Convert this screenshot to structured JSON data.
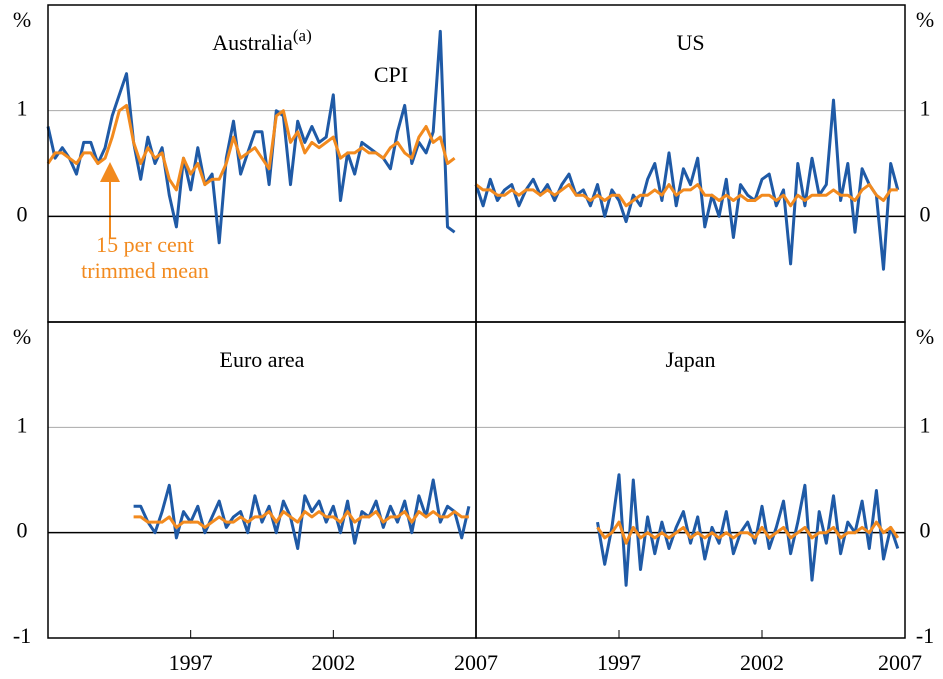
{
  "chart_data": [
    {
      "type": "line",
      "title": "Australia",
      "title_superscript": "(a)",
      "unit": "%",
      "x": [
        1992,
        1992.25,
        1992.5,
        1992.75,
        1993,
        1993.25,
        1993.5,
        1993.75,
        1994,
        1994.25,
        1994.5,
        1994.75,
        1995,
        1995.25,
        1995.5,
        1995.75,
        1996,
        1996.25,
        1996.5,
        1996.75,
        1997,
        1997.25,
        1997.5,
        1997.75,
        1998,
        1998.25,
        1998.5,
        1998.75,
        1999,
        1999.25,
        1999.5,
        1999.75,
        2000,
        2000.25,
        2000.5,
        2000.75,
        2001,
        2001.25,
        2001.5,
        2001.75,
        2002,
        2002.25,
        2002.5,
        2002.75,
        2003,
        2003.25,
        2003.5,
        2003.75,
        2004,
        2004.25,
        2004.5,
        2004.75,
        2005,
        2005.25,
        2005.5,
        2005.75,
        2006,
        2006.25
      ],
      "series": [
        {
          "name": "CPI",
          "color": "#1f5aa6",
          "values": [
            0.85,
            0.55,
            0.65,
            0.55,
            0.4,
            0.7,
            0.7,
            0.5,
            0.65,
            0.95,
            1.15,
            1.35,
            0.7,
            0.35,
            0.75,
            0.5,
            0.65,
            0.2,
            -0.1,
            0.55,
            0.25,
            0.65,
            0.3,
            0.4,
            -0.25,
            0.55,
            0.9,
            0.4,
            0.6,
            0.8,
            0.8,
            0.3,
            1.0,
            0.95,
            0.3,
            0.9,
            0.7,
            0.85,
            0.7,
            0.75,
            1.15,
            0.15,
            0.6,
            0.4,
            0.7,
            0.65,
            0.6,
            0.55,
            0.45,
            0.8,
            1.05,
            0.5,
            0.7,
            0.6,
            0.8,
            1.75,
            -0.1,
            -0.15
          ]
        },
        {
          "name": "15 per cent trimmed mean",
          "color": "#f28a1e",
          "values": [
            0.5,
            0.6,
            0.6,
            0.55,
            0.5,
            0.6,
            0.6,
            0.5,
            0.55,
            0.75,
            1.0,
            1.05,
            0.7,
            0.5,
            0.65,
            0.55,
            0.6,
            0.35,
            0.25,
            0.55,
            0.4,
            0.5,
            0.3,
            0.35,
            0.35,
            0.5,
            0.75,
            0.55,
            0.6,
            0.65,
            0.55,
            0.45,
            0.95,
            1.0,
            0.7,
            0.8,
            0.6,
            0.7,
            0.65,
            0.7,
            0.75,
            0.55,
            0.6,
            0.6,
            0.65,
            0.6,
            0.6,
            0.55,
            0.65,
            0.7,
            0.6,
            0.55,
            0.75,
            0.85,
            0.7,
            0.75,
            0.5,
            0.55
          ]
        }
      ],
      "xlim": [
        1992,
        2007
      ],
      "ylim": [
        -1,
        2
      ],
      "yticks": [
        0,
        1
      ]
    },
    {
      "type": "line",
      "title": "US",
      "unit": "%",
      "x": [
        1992,
        1992.25,
        1992.5,
        1992.75,
        1993,
        1993.25,
        1993.5,
        1993.75,
        1994,
        1994.25,
        1994.5,
        1994.75,
        1995,
        1995.25,
        1995.5,
        1995.75,
        1996,
        1996.25,
        1996.5,
        1996.75,
        1997,
        1997.25,
        1997.5,
        1997.75,
        1998,
        1998.25,
        1998.5,
        1998.75,
        1999,
        1999.25,
        1999.5,
        1999.75,
        2000,
        2000.25,
        2000.5,
        2000.75,
        2001,
        2001.25,
        2001.5,
        2001.75,
        2002,
        2002.25,
        2002.5,
        2002.75,
        2003,
        2003.25,
        2003.5,
        2003.75,
        2004,
        2004.25,
        2004.5,
        2004.75,
        2005,
        2005.25,
        2005.5,
        2005.75,
        2006,
        2006.25,
        2006.5,
        2006.75
      ],
      "series": [
        {
          "color": "#1f5aa6",
          "values": [
            0.3,
            0.1,
            0.35,
            0.15,
            0.25,
            0.3,
            0.1,
            0.25,
            0.35,
            0.2,
            0.3,
            0.15,
            0.3,
            0.4,
            0.2,
            0.25,
            0.1,
            0.3,
            0.0,
            0.25,
            0.15,
            -0.05,
            0.2,
            0.1,
            0.35,
            0.5,
            0.15,
            0.6,
            0.1,
            0.45,
            0.3,
            0.55,
            -0.1,
            0.2,
            0.0,
            0.35,
            -0.2,
            0.3,
            0.2,
            0.15,
            0.35,
            0.4,
            0.1,
            0.25,
            -0.45,
            0.5,
            0.1,
            0.55,
            0.2,
            0.3,
            1.1,
            0.15,
            0.5,
            -0.15,
            0.45,
            0.3,
            0.2,
            -0.5,
            0.5,
            0.25
          ]
        },
        {
          "color": "#f28a1e",
          "values": [
            0.3,
            0.25,
            0.25,
            0.2,
            0.2,
            0.25,
            0.2,
            0.25,
            0.25,
            0.2,
            0.25,
            0.2,
            0.25,
            0.3,
            0.2,
            0.2,
            0.15,
            0.2,
            0.15,
            0.2,
            0.2,
            0.1,
            0.15,
            0.2,
            0.2,
            0.25,
            0.2,
            0.3,
            0.2,
            0.25,
            0.25,
            0.3,
            0.2,
            0.2,
            0.15,
            0.2,
            0.15,
            0.2,
            0.15,
            0.15,
            0.2,
            0.2,
            0.15,
            0.2,
            0.1,
            0.2,
            0.15,
            0.2,
            0.2,
            0.2,
            0.25,
            0.2,
            0.2,
            0.15,
            0.25,
            0.3,
            0.2,
            0.15,
            0.25,
            0.25
          ]
        }
      ],
      "xlim": [
        1992,
        2007
      ],
      "ylim": [
        -1,
        2
      ],
      "yticks": [
        0,
        1
      ]
    },
    {
      "type": "line",
      "title": "Euro area",
      "unit": "%",
      "x": [
        1995,
        1995.25,
        1995.5,
        1995.75,
        1996,
        1996.25,
        1996.5,
        1996.75,
        1997,
        1997.25,
        1997.5,
        1997.75,
        1998,
        1998.25,
        1998.5,
        1998.75,
        1999,
        1999.25,
        1999.5,
        1999.75,
        2000,
        2000.25,
        2000.5,
        2000.75,
        2001,
        2001.25,
        2001.5,
        2001.75,
        2002,
        2002.25,
        2002.5,
        2002.75,
        2003,
        2003.25,
        2003.5,
        2003.75,
        2004,
        2004.25,
        2004.5,
        2004.75,
        2005,
        2005.25,
        2005.5,
        2005.75,
        2006,
        2006.25,
        2006.5,
        2006.75
      ],
      "series": [
        {
          "color": "#1f5aa6",
          "values": [
            0.25,
            0.25,
            0.1,
            0.0,
            0.2,
            0.45,
            -0.05,
            0.2,
            0.1,
            0.25,
            0.0,
            0.15,
            0.3,
            0.05,
            0.15,
            0.2,
            0.0,
            0.35,
            0.1,
            0.25,
            0.0,
            0.3,
            0.15,
            -0.15,
            0.35,
            0.2,
            0.3,
            0.1,
            0.25,
            0.0,
            0.3,
            -0.1,
            0.2,
            0.15,
            0.3,
            0.05,
            0.25,
            0.1,
            0.3,
            0.0,
            0.35,
            0.15,
            0.5,
            0.1,
            0.25,
            0.2,
            -0.05,
            0.25
          ]
        },
        {
          "color": "#f28a1e",
          "values": [
            0.15,
            0.15,
            0.1,
            0.1,
            0.1,
            0.15,
            0.05,
            0.1,
            0.1,
            0.1,
            0.05,
            0.1,
            0.15,
            0.1,
            0.1,
            0.15,
            0.1,
            0.15,
            0.15,
            0.2,
            0.1,
            0.2,
            0.15,
            0.1,
            0.2,
            0.15,
            0.2,
            0.15,
            0.15,
            0.1,
            0.2,
            0.1,
            0.15,
            0.15,
            0.2,
            0.1,
            0.15,
            0.15,
            0.2,
            0.1,
            0.2,
            0.15,
            0.2,
            0.15,
            0.15,
            0.2,
            0.15,
            0.15
          ]
        }
      ],
      "xlim": [
        1992,
        2007
      ],
      "ylim": [
        -1,
        2
      ],
      "yticks": [
        -1,
        0,
        1
      ],
      "xticks": [
        1997,
        2002,
        2007
      ]
    },
    {
      "type": "line",
      "title": "Japan",
      "unit": "%",
      "x": [
        1996.25,
        1996.5,
        1996.75,
        1997,
        1997.25,
        1997.5,
        1997.75,
        1998,
        1998.25,
        1998.5,
        1998.75,
        1999,
        1999.25,
        1999.5,
        1999.75,
        2000,
        2000.25,
        2000.5,
        2000.75,
        2001,
        2001.25,
        2001.5,
        2001.75,
        2002,
        2002.25,
        2002.5,
        2002.75,
        2003,
        2003.25,
        2003.5,
        2003.75,
        2004,
        2004.25,
        2004.5,
        2004.75,
        2005,
        2005.25,
        2005.5,
        2005.75,
        2006,
        2006.25,
        2006.5,
        2006.75
      ],
      "series": [
        {
          "color": "#1f5aa6",
          "values": [
            0.1,
            -0.3,
            0.05,
            0.55,
            -0.5,
            0.5,
            -0.35,
            0.15,
            -0.2,
            0.1,
            -0.15,
            0.05,
            0.2,
            -0.1,
            0.15,
            -0.25,
            0.05,
            -0.1,
            0.2,
            -0.2,
            0.0,
            0.1,
            -0.1,
            0.25,
            -0.15,
            0.05,
            0.3,
            -0.2,
            0.1,
            0.45,
            -0.45,
            0.2,
            -0.1,
            0.35,
            -0.2,
            0.1,
            0.0,
            0.3,
            -0.15,
            0.4,
            -0.25,
            0.05,
            -0.15
          ]
        },
        {
          "color": "#f28a1e",
          "values": [
            0.05,
            -0.05,
            0.0,
            0.1,
            -0.1,
            0.05,
            -0.05,
            0.0,
            -0.05,
            0.0,
            -0.05,
            0.0,
            0.05,
            -0.05,
            0.0,
            -0.05,
            0.0,
            -0.05,
            0.0,
            -0.05,
            0.0,
            0.0,
            -0.05,
            0.05,
            -0.05,
            0.0,
            0.05,
            -0.05,
            0.0,
            0.05,
            -0.05,
            0.0,
            0.0,
            0.05,
            -0.05,
            0.0,
            0.0,
            0.05,
            0.0,
            0.1,
            0.0,
            0.05,
            -0.05
          ]
        }
      ],
      "xlim": [
        1992,
        2007
      ],
      "ylim": [
        -1,
        2
      ],
      "yticks": [
        -1,
        0,
        1
      ],
      "xticks": [
        1997,
        2002,
        2007
      ]
    }
  ]
}
